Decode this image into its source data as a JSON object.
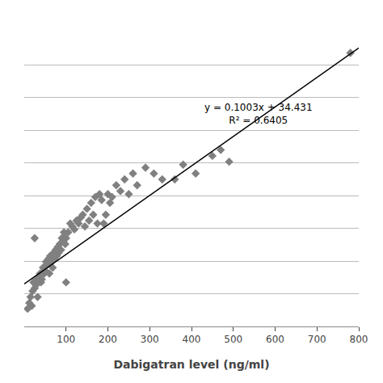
{
  "chart_data": {
    "type": "scatter",
    "xlabel": "Dabigatran level (ng/ml)",
    "x": [
      8,
      12,
      15,
      18,
      20,
      22,
      25,
      25,
      28,
      30,
      32,
      35,
      38,
      40,
      42,
      45,
      48,
      50,
      52,
      55,
      58,
      60,
      62,
      65,
      68,
      70,
      72,
      75,
      78,
      80,
      82,
      85,
      88,
      90,
      92,
      95,
      98,
      100,
      100,
      105,
      110,
      115,
      120,
      125,
      130,
      135,
      140,
      145,
      150,
      155,
      160,
      165,
      170,
      175,
      180,
      185,
      190,
      195,
      200,
      205,
      210,
      220,
      230,
      240,
      250,
      260,
      270,
      290,
      310,
      330,
      360,
      380,
      410,
      450,
      470,
      490,
      780
    ],
    "series": [
      {
        "type": "scatter",
        "marker": "diamond",
        "color": "#808080",
        "values": [
          26,
          28,
          30,
          27,
          32,
          35,
          33,
          50,
          34,
          36,
          30,
          37,
          38,
          35,
          36,
          40,
          38,
          39,
          42,
          41,
          43,
          38,
          44,
          42,
          40,
          45,
          43,
          46,
          44,
          47,
          45,
          48,
          46,
          50,
          49,
          52,
          48,
          50,
          35,
          52,
          55,
          54,
          53,
          56,
          55,
          57,
          58,
          54,
          60,
          56,
          62,
          58,
          64,
          55,
          65,
          63,
          55,
          58,
          65,
          62,
          64,
          68,
          66,
          70,
          65,
          72,
          68,
          74,
          72,
          70,
          70,
          75,
          72,
          78,
          80,
          76,
          113
        ]
      },
      {
        "type": "line",
        "color": "#000000",
        "line_style": "solid",
        "x": [
          0,
          800
        ],
        "values": [
          34.431,
          114.671
        ]
      }
    ],
    "annotations": [
      {
        "text": "y = 0.1003x + 34.431\nR² = 0.6405",
        "x": 560,
        "y": 97
      }
    ],
    "xlim": [
      0,
      800
    ],
    "xticks": [
      100,
      200,
      300,
      400,
      500,
      600,
      700,
      800
    ],
    "ylim": [
      20,
      120
    ],
    "yticks": [
      20,
      31.11111111111111,
      42.22222222222222,
      53.33333333333333,
      64.44444444444444,
      75.55555555555556,
      86.66666666666667,
      97.77777777777777,
      108.88888888888889,
      120
    ],
    "grid": true,
    "tick_labels": "x"
  }
}
